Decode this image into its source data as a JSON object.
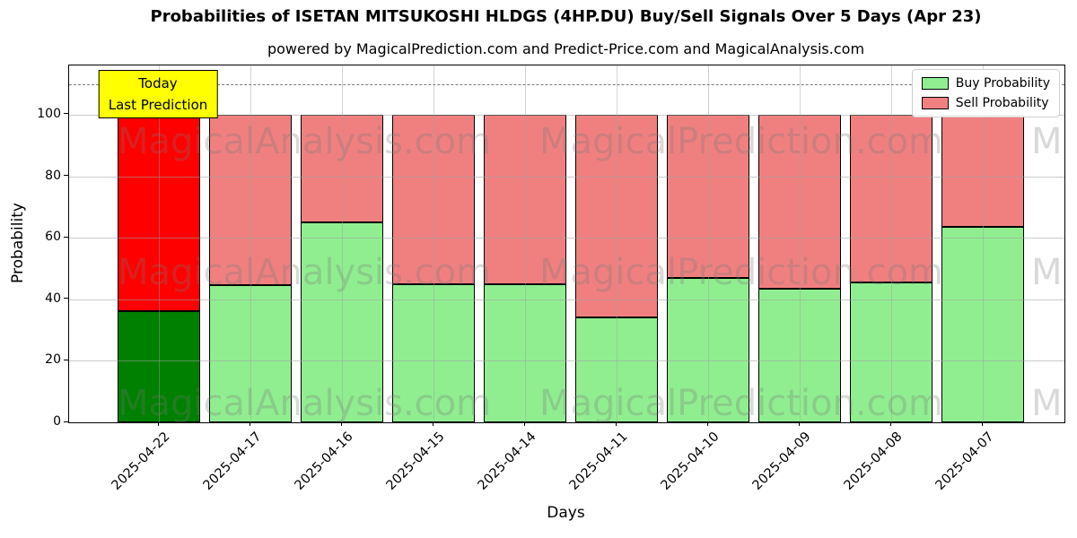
{
  "title": "Probabilities of ISETAN MITSUKOSHI HLDGS (4HP.DU) Buy/Sell Signals Over 5 Days (Apr 23)",
  "subtitle": "powered by MagicalPrediction.com and Predict-Price.com and MagicalAnalysis.com",
  "annotation": {
    "line1": "Today",
    "line2": "Last Prediction",
    "bg_color": "#ffff00"
  },
  "legend": [
    {
      "label": "Buy Probability",
      "color": "#90ee90"
    },
    {
      "label": "Sell Probability",
      "color": "#f08080"
    }
  ],
  "watermarks": [
    "MagicalAnalysis.com",
    "MagicalPrediction.com"
  ],
  "colors": {
    "buy_normal": "#90ee90",
    "sell_normal": "#f08080",
    "buy_today": "#008000",
    "sell_today": "#ff0000",
    "grid": "#a0a0a0",
    "dashed_line": "#7a7a7a"
  },
  "chart_data": {
    "type": "bar",
    "stacked": true,
    "title": "Probabilities of ISETAN MITSUKOSHI HLDGS (4HP.DU) Buy/Sell Signals Over 5 Days (Apr 23)",
    "subtitle": "powered by MagicalPrediction.com and Predict-Price.com and MagicalAnalysis.com",
    "xlabel": "Days",
    "ylabel": "Probability",
    "categories": [
      "2025-04-22",
      "2025-04-17",
      "2025-04-16",
      "2025-04-15",
      "2025-04-14",
      "2025-04-11",
      "2025-04-10",
      "2025-04-09",
      "2025-04-08",
      "2025-04-07"
    ],
    "series": [
      {
        "name": "Buy Probability",
        "values": [
          36,
          44.5,
          65,
          45,
          45,
          34,
          47,
          43.5,
          45.5,
          63.5
        ]
      },
      {
        "name": "Sell Probability",
        "values": [
          64,
          55.5,
          35,
          55,
          55,
          66,
          53,
          56.5,
          54.5,
          36.5
        ]
      }
    ],
    "bar_total": 100,
    "yticks": [
      0,
      20,
      40,
      60,
      80,
      100
    ],
    "ylim": [
      0,
      116
    ],
    "dashed_line_y": 110,
    "grid": true,
    "legend_position": "upper right",
    "highlighted_bar": "2025-04-22",
    "xtick_rotation": 45
  }
}
